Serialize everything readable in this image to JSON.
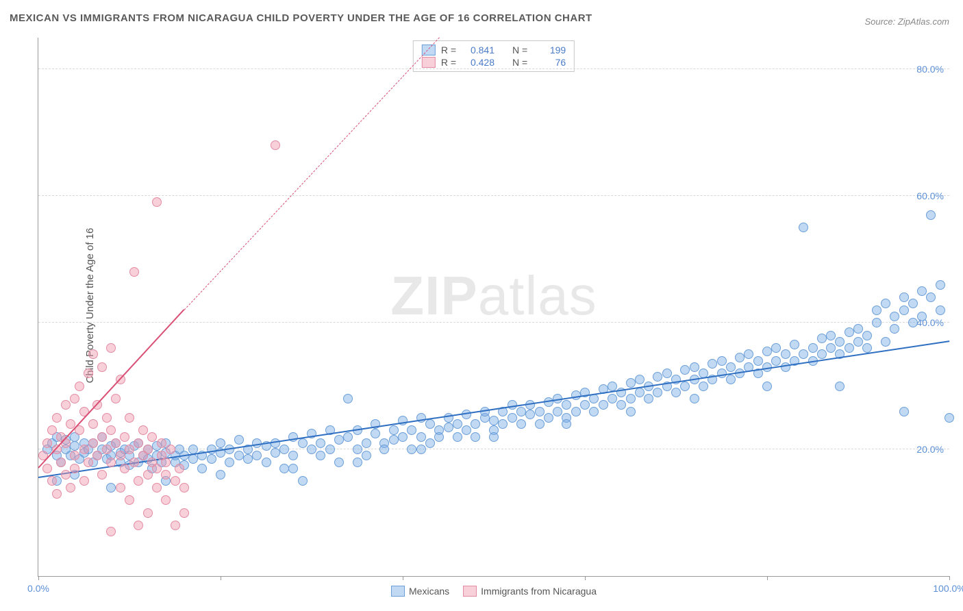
{
  "title": "MEXICAN VS IMMIGRANTS FROM NICARAGUA CHILD POVERTY UNDER THE AGE OF 16 CORRELATION CHART",
  "source": "Source: ZipAtlas.com",
  "ylabel": "Child Poverty Under the Age of 16",
  "watermark_a": "ZIP",
  "watermark_b": "atlas",
  "chart": {
    "type": "scatter",
    "xlim": [
      0,
      100
    ],
    "ylim": [
      0,
      85
    ],
    "yticks": [
      20,
      40,
      60,
      80
    ],
    "ytick_labels": [
      "20.0%",
      "40.0%",
      "60.0%",
      "80.0%"
    ],
    "xticks": [
      0,
      20,
      40,
      60,
      80,
      100
    ],
    "xaxis_end_labels": {
      "left": "0.0%",
      "right": "100.0%"
    },
    "background": "#ffffff",
    "grid_color": "#d8d8d8",
    "axis_color": "#999999",
    "ylabel_color": "#5b8fd6",
    "point_radius": 7,
    "series": [
      {
        "name": "Mexicans",
        "color_fill": "rgba(120,170,230,0.45)",
        "color_stroke": "#6b9fd8",
        "trend_color": "#2f6fc2",
        "trend": {
          "x1": 0,
          "y1": 15.5,
          "x2": 100,
          "y2": 37
        },
        "R": "0.841",
        "N": "199",
        "points": [
          [
            1,
            20
          ],
          [
            1.5,
            21
          ],
          [
            2,
            19
          ],
          [
            2,
            22
          ],
          [
            2.5,
            18
          ],
          [
            3,
            20
          ],
          [
            3,
            21.5
          ],
          [
            3.5,
            19
          ],
          [
            4,
            20.5
          ],
          [
            4,
            22
          ],
          [
            4.5,
            18.5
          ],
          [
            5,
            21
          ],
          [
            5,
            19.5
          ],
          [
            5.5,
            20
          ],
          [
            6,
            18
          ],
          [
            6,
            21
          ],
          [
            6.5,
            19
          ],
          [
            7,
            20
          ],
          [
            7,
            22
          ],
          [
            7.5,
            18.5
          ],
          [
            8,
            19
          ],
          [
            8,
            20.5
          ],
          [
            8.5,
            21
          ],
          [
            9,
            18
          ],
          [
            9,
            19.5
          ],
          [
            9.5,
            20
          ],
          [
            10,
            17.5
          ],
          [
            10,
            19
          ],
          [
            10.5,
            20.5
          ],
          [
            11,
            18
          ],
          [
            11,
            21
          ],
          [
            11.5,
            19
          ],
          [
            12,
            18.5
          ],
          [
            12,
            20
          ],
          [
            12.5,
            17
          ],
          [
            13,
            19
          ],
          [
            13,
            20.5
          ],
          [
            13.5,
            18
          ],
          [
            14,
            19.5
          ],
          [
            14,
            21
          ],
          [
            15,
            18
          ],
          [
            15,
            19
          ],
          [
            15.5,
            20
          ],
          [
            16,
            17.5
          ],
          [
            16,
            19
          ],
          [
            17,
            18.5
          ],
          [
            17,
            20
          ],
          [
            18,
            19
          ],
          [
            18,
            17
          ],
          [
            19,
            20
          ],
          [
            19,
            18.5
          ],
          [
            20,
            19.5
          ],
          [
            20,
            21
          ],
          [
            21,
            18
          ],
          [
            21,
            20
          ],
          [
            22,
            19
          ],
          [
            22,
            21.5
          ],
          [
            23,
            20
          ],
          [
            23,
            18.5
          ],
          [
            24,
            21
          ],
          [
            24,
            19
          ],
          [
            25,
            20.5
          ],
          [
            25,
            18
          ],
          [
            26,
            21
          ],
          [
            26,
            19.5
          ],
          [
            27,
            17
          ],
          [
            27,
            20
          ],
          [
            28,
            22
          ],
          [
            28,
            19
          ],
          [
            29,
            21
          ],
          [
            29,
            15
          ],
          [
            30,
            20
          ],
          [
            30,
            22.5
          ],
          [
            31,
            19
          ],
          [
            31,
            21
          ],
          [
            32,
            23
          ],
          [
            32,
            20
          ],
          [
            33,
            18
          ],
          [
            33,
            21.5
          ],
          [
            34,
            22
          ],
          [
            34,
            28
          ],
          [
            35,
            20
          ],
          [
            35,
            23
          ],
          [
            36,
            21
          ],
          [
            36,
            19
          ],
          [
            37,
            22.5
          ],
          [
            37,
            24
          ],
          [
            38,
            21
          ],
          [
            38,
            20
          ],
          [
            39,
            23
          ],
          [
            39,
            21.5
          ],
          [
            40,
            22
          ],
          [
            40,
            24.5
          ],
          [
            41,
            20
          ],
          [
            41,
            23
          ],
          [
            42,
            22
          ],
          [
            42,
            25
          ],
          [
            43,
            21
          ],
          [
            43,
            24
          ],
          [
            44,
            23
          ],
          [
            44,
            22
          ],
          [
            45,
            25
          ],
          [
            45,
            23.5
          ],
          [
            46,
            22
          ],
          [
            46,
            24
          ],
          [
            47,
            25.5
          ],
          [
            47,
            23
          ],
          [
            48,
            24
          ],
          [
            48,
            22
          ],
          [
            49,
            25
          ],
          [
            49,
            26
          ],
          [
            50,
            23
          ],
          [
            50,
            24.5
          ],
          [
            51,
            26
          ],
          [
            51,
            24
          ],
          [
            52,
            25
          ],
          [
            52,
            27
          ],
          [
            53,
            24
          ],
          [
            53,
            26
          ],
          [
            54,
            25.5
          ],
          [
            54,
            27
          ],
          [
            55,
            24
          ],
          [
            55,
            26
          ],
          [
            56,
            27.5
          ],
          [
            56,
            25
          ],
          [
            57,
            26
          ],
          [
            57,
            28
          ],
          [
            58,
            25
          ],
          [
            58,
            27
          ],
          [
            59,
            28.5
          ],
          [
            59,
            26
          ],
          [
            60,
            27
          ],
          [
            60,
            29
          ],
          [
            61,
            26
          ],
          [
            61,
            28
          ],
          [
            62,
            29.5
          ],
          [
            62,
            27
          ],
          [
            63,
            28
          ],
          [
            63,
            30
          ],
          [
            64,
            27
          ],
          [
            64,
            29
          ],
          [
            65,
            30.5
          ],
          [
            65,
            28
          ],
          [
            66,
            29
          ],
          [
            66,
            31
          ],
          [
            67,
            28
          ],
          [
            67,
            30
          ],
          [
            68,
            31.5
          ],
          [
            68,
            29
          ],
          [
            69,
            30
          ],
          [
            69,
            32
          ],
          [
            70,
            29
          ],
          [
            70,
            31
          ],
          [
            71,
            32.5
          ],
          [
            71,
            30
          ],
          [
            72,
            31
          ],
          [
            72,
            33
          ],
          [
            73,
            30
          ],
          [
            73,
            32
          ],
          [
            74,
            33.5
          ],
          [
            74,
            31
          ],
          [
            75,
            32
          ],
          [
            75,
            34
          ],
          [
            76,
            31
          ],
          [
            76,
            33
          ],
          [
            77,
            34.5
          ],
          [
            77,
            32
          ],
          [
            78,
            33
          ],
          [
            78,
            35
          ],
          [
            79,
            32
          ],
          [
            79,
            34
          ],
          [
            80,
            35.5
          ],
          [
            80,
            33
          ],
          [
            81,
            34
          ],
          [
            81,
            36
          ],
          [
            82,
            33
          ],
          [
            82,
            35
          ],
          [
            83,
            36.5
          ],
          [
            83,
            34
          ],
          [
            84,
            35
          ],
          [
            84,
            55
          ],
          [
            85,
            34
          ],
          [
            85,
            36
          ],
          [
            86,
            37.5
          ],
          [
            86,
            35
          ],
          [
            87,
            36
          ],
          [
            87,
            38
          ],
          [
            88,
            35
          ],
          [
            88,
            37
          ],
          [
            89,
            38.5
          ],
          [
            89,
            36
          ],
          [
            90,
            37
          ],
          [
            90,
            39
          ],
          [
            91,
            36
          ],
          [
            91,
            38
          ],
          [
            92,
            40
          ],
          [
            92,
            42
          ],
          [
            93,
            37
          ],
          [
            93,
            43
          ],
          [
            94,
            39
          ],
          [
            94,
            41
          ],
          [
            95,
            44
          ],
          [
            95,
            42
          ],
          [
            96,
            40
          ],
          [
            96,
            43
          ],
          [
            97,
            45
          ],
          [
            97,
            41
          ],
          [
            98,
            44
          ],
          [
            98,
            57
          ],
          [
            99,
            42
          ],
          [
            99,
            46
          ],
          [
            100,
            25
          ],
          [
            95,
            26
          ],
          [
            88,
            30
          ],
          [
            80,
            30
          ],
          [
            72,
            28
          ],
          [
            65,
            26
          ],
          [
            58,
            24
          ],
          [
            50,
            22
          ],
          [
            42,
            20
          ],
          [
            35,
            18
          ],
          [
            28,
            17
          ],
          [
            20,
            16
          ],
          [
            14,
            15
          ],
          [
            8,
            14
          ],
          [
            4,
            16
          ],
          [
            2,
            15
          ]
        ]
      },
      {
        "name": "Immigrants from Nicaragua",
        "color_fill": "rgba(240,150,170,0.45)",
        "color_stroke": "#e38ba3",
        "trend_color": "#d94f75",
        "trend": {
          "x1": 0,
          "y1": 17,
          "x2": 16,
          "y2": 42
        },
        "trend_dash": {
          "x1": 16,
          "y1": 42,
          "x2": 44,
          "y2": 85
        },
        "R": "0.428",
        "N": "76",
        "points": [
          [
            0.5,
            19
          ],
          [
            1,
            21
          ],
          [
            1,
            17
          ],
          [
            1.5,
            23
          ],
          [
            1.5,
            15
          ],
          [
            2,
            20
          ],
          [
            2,
            25
          ],
          [
            2,
            13
          ],
          [
            2.5,
            22
          ],
          [
            2.5,
            18
          ],
          [
            3,
            27
          ],
          [
            3,
            16
          ],
          [
            3,
            21
          ],
          [
            3.5,
            24
          ],
          [
            3.5,
            14
          ],
          [
            4,
            19
          ],
          [
            4,
            28
          ],
          [
            4,
            17
          ],
          [
            4.5,
            23
          ],
          [
            4.5,
            30
          ],
          [
            5,
            20
          ],
          [
            5,
            26
          ],
          [
            5,
            15
          ],
          [
            5.5,
            32
          ],
          [
            5.5,
            18
          ],
          [
            6,
            24
          ],
          [
            6,
            21
          ],
          [
            6,
            35
          ],
          [
            6.5,
            19
          ],
          [
            6.5,
            27
          ],
          [
            7,
            22
          ],
          [
            7,
            16
          ],
          [
            7,
            33
          ],
          [
            7.5,
            25
          ],
          [
            7.5,
            20
          ],
          [
            8,
            18
          ],
          [
            8,
            36
          ],
          [
            8,
            23
          ],
          [
            8.5,
            21
          ],
          [
            8.5,
            28
          ],
          [
            9,
            19
          ],
          [
            9,
            14
          ],
          [
            9,
            31
          ],
          [
            9.5,
            22
          ],
          [
            9.5,
            17
          ],
          [
            10,
            20
          ],
          [
            10,
            25
          ],
          [
            10,
            12
          ],
          [
            10.5,
            48
          ],
          [
            10.5,
            18
          ],
          [
            11,
            21
          ],
          [
            11,
            15
          ],
          [
            11,
            8
          ],
          [
            11.5,
            19
          ],
          [
            11.5,
            23
          ],
          [
            12,
            16
          ],
          [
            12,
            20
          ],
          [
            12,
            10
          ],
          [
            12.5,
            18
          ],
          [
            12.5,
            22
          ],
          [
            13,
            17
          ],
          [
            13,
            59
          ],
          [
            13,
            14
          ],
          [
            13.5,
            19
          ],
          [
            13.5,
            21
          ],
          [
            14,
            16
          ],
          [
            14,
            12
          ],
          [
            14,
            18
          ],
          [
            14.5,
            20
          ],
          [
            15,
            15
          ],
          [
            15,
            8
          ],
          [
            15.5,
            17
          ],
          [
            16,
            14
          ],
          [
            16,
            10
          ],
          [
            26,
            68
          ],
          [
            8,
            7
          ]
        ]
      }
    ]
  },
  "legend_top": {
    "R_label": "R =",
    "N_label": "N ="
  },
  "legend_bottom": {
    "items": [
      "Mexicans",
      "Immigrants from Nicaragua"
    ]
  }
}
